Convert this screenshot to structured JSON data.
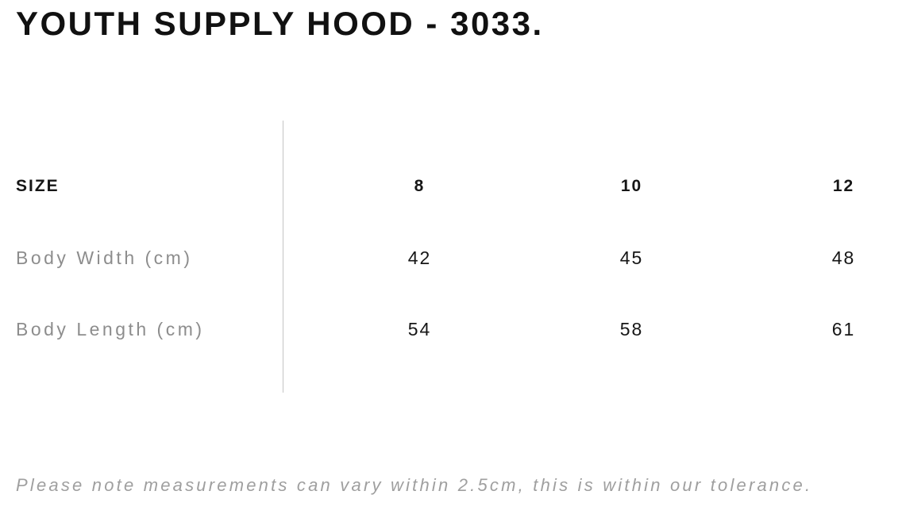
{
  "page": {
    "title": "YOUTH SUPPLY HOOD - 3033.",
    "note": "Please note measurements can vary within 2.5cm, this is within our tolerance."
  },
  "size_chart": {
    "header": {
      "label": "SIZE",
      "sizes": [
        "8",
        "10",
        "12"
      ]
    },
    "rows": [
      {
        "label": "Body Width (cm)",
        "values": [
          "42",
          "45",
          "48"
        ]
      },
      {
        "label": "Body Length (cm)",
        "values": [
          "54",
          "58",
          "61"
        ]
      }
    ]
  },
  "colors": {
    "text": "#161616",
    "label_gray": "#8d8d8d",
    "note_gray": "#9f9f9f",
    "divider_gray": "#c5c5c5"
  }
}
